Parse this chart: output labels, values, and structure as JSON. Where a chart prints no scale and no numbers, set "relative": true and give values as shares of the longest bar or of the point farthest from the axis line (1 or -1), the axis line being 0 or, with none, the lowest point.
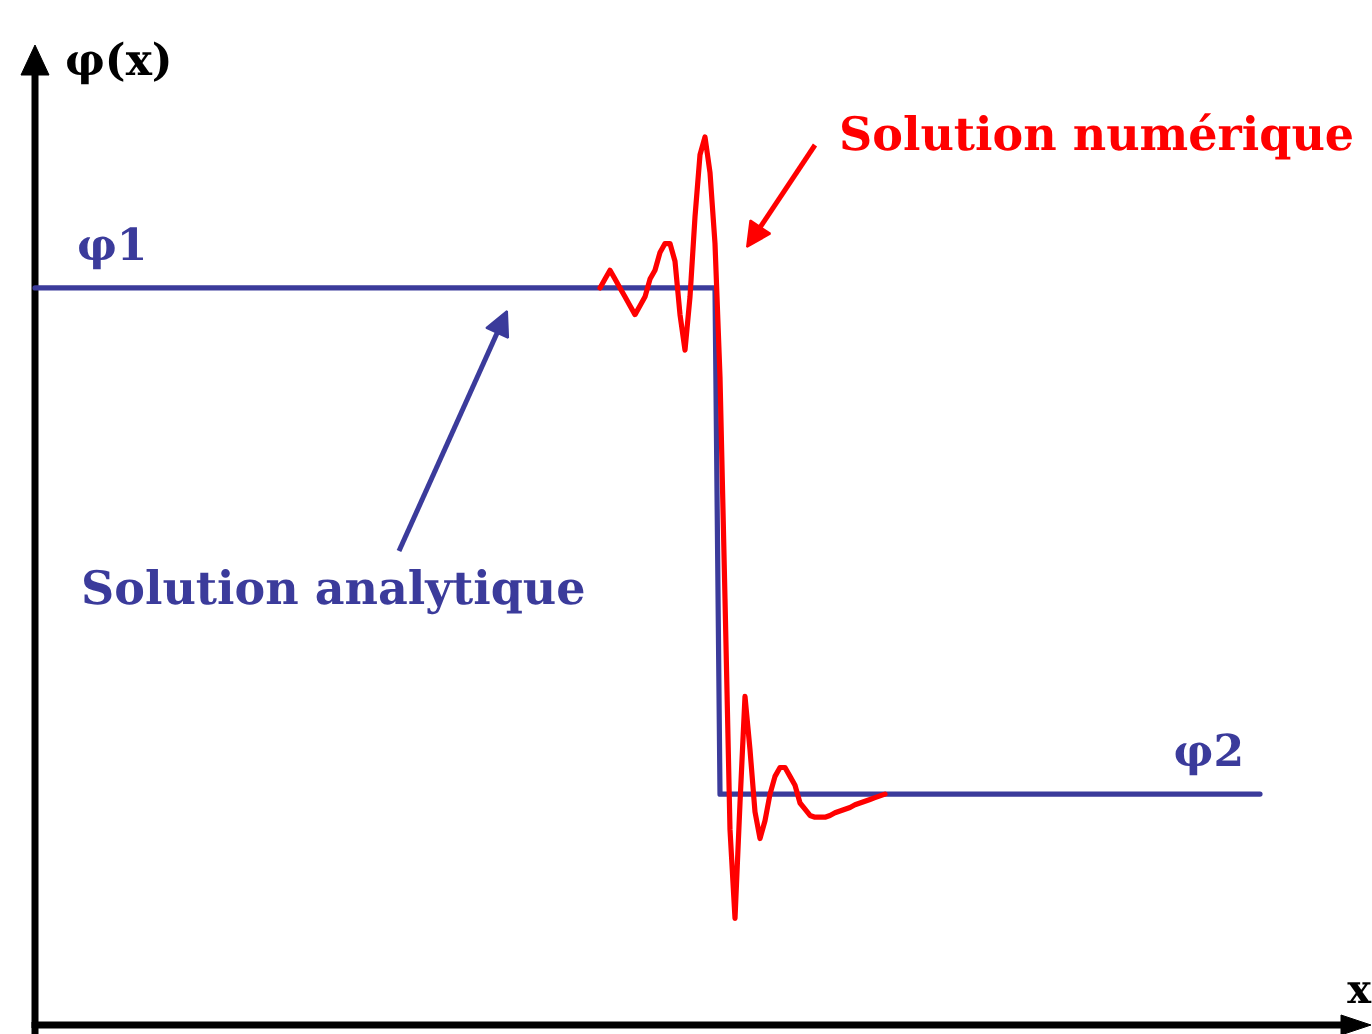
{
  "chart_data": {
    "type": "line",
    "relative": true,
    "xlabel": "x",
    "ylabel": "φ(x)",
    "line_style": "solid",
    "marker": "none",
    "categories": [
      null,
      null,
      null,
      null,
      null,
      null,
      null,
      null,
      null,
      null,
      null,
      null,
      null,
      null,
      null,
      null,
      null,
      null,
      null,
      null,
      null,
      null,
      null,
      null,
      null,
      null,
      null,
      null,
      null,
      null,
      null,
      null,
      null,
      null,
      null,
      null,
      null,
      null,
      null,
      null,
      null,
      null,
      null,
      null,
      null,
      null,
      null,
      null,
      null,
      null,
      null,
      null,
      null,
      null,
      null,
      null,
      null,
      null,
      null,
      null,
      null,
      null,
      null,
      null,
      null,
      null,
      null,
      null,
      null,
      null,
      null,
      null,
      null,
      null,
      null,
      null,
      null,
      null,
      null,
      null,
      null,
      null,
      null,
      null,
      null,
      null,
      null,
      null,
      null,
      null,
      null,
      null,
      null,
      null,
      null,
      null,
      null,
      null,
      null,
      null,
      null,
      null,
      null,
      null,
      null,
      null,
      null,
      null,
      null,
      null,
      null,
      null,
      null,
      null,
      null,
      null,
      null,
      null,
      null,
      null,
      null,
      null,
      null,
      null,
      null,
      null,
      null,
      null,
      null,
      null,
      null,
      null,
      null,
      null,
      null,
      null,
      null,
      null,
      null,
      null,
      null,
      null,
      null,
      null,
      null,
      null,
      null,
      null,
      null,
      null,
      null,
      null,
      null,
      null,
      null,
      null,
      null,
      null,
      null,
      null,
      null,
      null,
      null,
      null,
      null,
      null,
      null,
      null,
      null,
      null,
      null,
      null,
      null,
      null,
      null,
      null,
      null,
      null,
      null,
      null,
      null,
      null,
      null,
      null,
      null,
      null,
      null,
      null,
      null,
      null,
      null,
      null,
      null,
      null,
      null,
      null,
      null,
      null,
      null,
      null,
      null,
      null,
      null,
      null,
      null,
      null,
      null,
      null,
      null,
      null,
      null,
      null,
      null,
      null,
      null,
      null,
      null,
      null,
      null,
      null,
      null,
      null,
      null,
      null,
      null,
      null,
      null,
      null,
      null,
      null,
      null,
      null,
      null,
      null,
      null,
      null,
      null,
      null,
      null,
      null,
      null,
      null,
      null,
      null,
      null,
      null
    ],
    "series": [
      {
        "name": "Solution analytique",
        "color": "#3b3b9b",
        "values": [
          0.83,
          0.83,
          0.83,
          0.83,
          0.83,
          0.83,
          0.83,
          0.83,
          0.83,
          0.83,
          0.83,
          0.83,
          0.83,
          0.83,
          0.83,
          0.83,
          0.83,
          0.83,
          0.83,
          0.83,
          0.83,
          0.83,
          0.83,
          0.83,
          0.83,
          0.83,
          0.83,
          0.83,
          0.83,
          0.83,
          0.83,
          0.83,
          0.83,
          0.83,
          0.83,
          0.83,
          0.83,
          0.83,
          0.83,
          0.83,
          0.83,
          0.83,
          0.83,
          0.83,
          0.83,
          0.83,
          0.83,
          0.83,
          0.83,
          0.83,
          0.83,
          0.83,
          0.83,
          0.83,
          0.83,
          0.83,
          0.83,
          0.83,
          0.83,
          0.83,
          0.83,
          0.83,
          0.83,
          0.83,
          0.83,
          0.83,
          0.83,
          0.83,
          0.83,
          0.83,
          0.83,
          0.83,
          0.83,
          0.83,
          0.83,
          0.83,
          0.83,
          0.83,
          0.83,
          0.83,
          0.83,
          0.83,
          0.83,
          0.83,
          0.83,
          0.83,
          0.83,
          0.83,
          0.83,
          0.83,
          0.83,
          0.83,
          0.83,
          0.83,
          0.83,
          0.83,
          0.83,
          0.83,
          0.83,
          0.83,
          0.83,
          0.83,
          0.83,
          0.83,
          0.83,
          0.83,
          0.83,
          0.83,
          0.83,
          0.83,
          0.83,
          0.83,
          0.83,
          0.83,
          0.83,
          0.83,
          0.83,
          0.83,
          0.83,
          0.83,
          0.83,
          0.83,
          0.83,
          0.83,
          0.83,
          0.83,
          0.83,
          0.83,
          0.83,
          0.83,
          0.83,
          0.83,
          0.83,
          0.83,
          0.83,
          0.83,
          0.83,
          0.26,
          0.26,
          0.26,
          0.26,
          0.26,
          0.26,
          0.26,
          0.26,
          0.26,
          0.26,
          0.26,
          0.26,
          0.26,
          0.26,
          0.26,
          0.26,
          0.26,
          0.26,
          0.26,
          0.26,
          0.26,
          0.26,
          0.26,
          0.26,
          0.26,
          0.26,
          0.26,
          0.26,
          0.26,
          0.26,
          0.26,
          0.26,
          0.26,
          0.26,
          0.26,
          0.26,
          0.26,
          0.26,
          0.26,
          0.26,
          0.26,
          0.26,
          0.26,
          0.26,
          0.26,
          0.26,
          0.26,
          0.26,
          0.26,
          0.26,
          0.26,
          0.26,
          0.26,
          0.26,
          0.26,
          0.26,
          0.26,
          0.26,
          0.26,
          0.26,
          0.26,
          0.26,
          0.26,
          0.26,
          0.26,
          0.26,
          0.26,
          0.26,
          0.26,
          0.26,
          0.26,
          0.26,
          0.26,
          0.26,
          0.26,
          0.26,
          0.26,
          0.26,
          0.26,
          0.26,
          0.26,
          0.26,
          0.26,
          0.26,
          0.26,
          0.26,
          0.26,
          0.26,
          0.26,
          0.26,
          0.26,
          0.26,
          0.26,
          0.26,
          0.26,
          0.26,
          0.26,
          0.26,
          0.26,
          0.26,
          0.26,
          0.26,
          0.26,
          0.26,
          0.26,
          0.26,
          0.26,
          0.26,
          0.26
        ]
      },
      {
        "name": "Solution numérique",
        "color": "#ff0000",
        "values": [
          null,
          null,
          null,
          null,
          null,
          null,
          null,
          null,
          null,
          null,
          null,
          null,
          null,
          null,
          null,
          null,
          null,
          null,
          null,
          null,
          null,
          null,
          null,
          null,
          null,
          null,
          null,
          null,
          null,
          null,
          null,
          null,
          null,
          null,
          null,
          null,
          null,
          null,
          null,
          null,
          null,
          null,
          null,
          null,
          null,
          null,
          null,
          null,
          null,
          null,
          null,
          null,
          null,
          null,
          null,
          null,
          null,
          null,
          null,
          null,
          null,
          null,
          null,
          null,
          null,
          null,
          null,
          null,
          null,
          null,
          null,
          null,
          null,
          null,
          null,
          null,
          null,
          null,
          null,
          null,
          null,
          null,
          null,
          null,
          null,
          null,
          null,
          null,
          null,
          null,
          null,
          null,
          null,
          null,
          null,
          null,
          null,
          null,
          null,
          null,
          null,
          null,
          null,
          null,
          null,
          null,
          null,
          null,
          null,
          null,
          null,
          null,
          null,
          0.83,
          0.84,
          0.85,
          0.84,
          0.83,
          0.82,
          0.81,
          0.8,
          0.81,
          0.82,
          0.84,
          0.85,
          0.87,
          0.88,
          0.88,
          0.86,
          0.8,
          0.76,
          0.82,
          0.91,
          0.98,
          1,
          0.96,
          0.88,
          0.73,
          0.48,
          0.22,
          0.12,
          0.25,
          0.37,
          0.31,
          0.24,
          0.21,
          0.23,
          0.26,
          0.28,
          0.29,
          0.29,
          0.28,
          0.27,
          0.25,
          0.243,
          0.236,
          0.234,
          0.234,
          0.234,
          0.236,
          0.239,
          0.241,
          0.243,
          0.245,
          0.248,
          0.25,
          0.252,
          0.254,
          0.256,
          0.258,
          0.26,
          null,
          null,
          null,
          null,
          null,
          null,
          null,
          null,
          null,
          null,
          null,
          null,
          null,
          null,
          null,
          null,
          null,
          null,
          null,
          null,
          null,
          null,
          null,
          null,
          null,
          null,
          null,
          null,
          null,
          null,
          null,
          null,
          null,
          null,
          null,
          null,
          null,
          null,
          null,
          null,
          null,
          null,
          null,
          null,
          null,
          null,
          null,
          null,
          null,
          null,
          null,
          null,
          null,
          null,
          null,
          null,
          null,
          null,
          null,
          null,
          null,
          null,
          null,
          null,
          null,
          null,
          null,
          null,
          null,
          null,
          null,
          null,
          null,
          null,
          null
        ]
      }
    ],
    "annotations": [
      {
        "text": "φ1",
        "y": 0.83
      },
      {
        "text": "φ2",
        "y": 0.26
      }
    ]
  }
}
